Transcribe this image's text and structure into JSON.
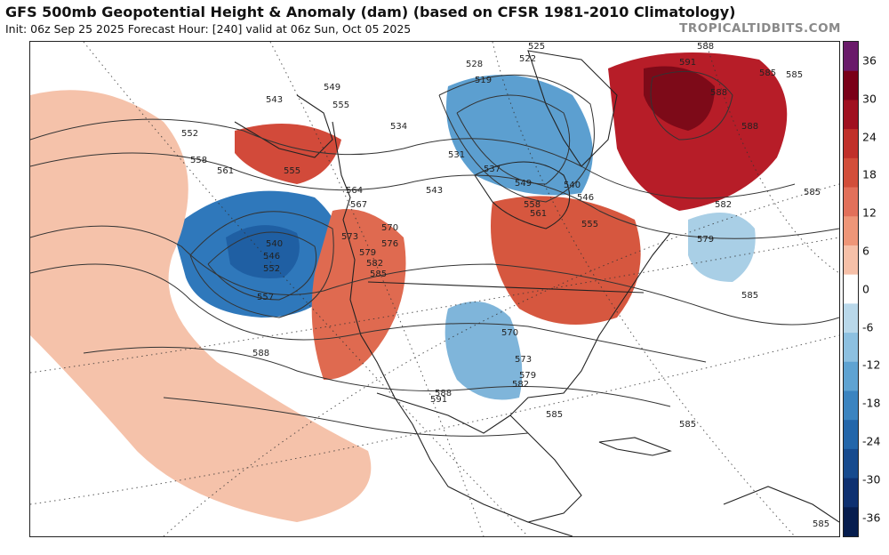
{
  "header": {
    "title": "GFS 500mb Geopotential Height & Anomaly (dam) (based on CFSR 1981-2010 Climatology)",
    "subtitle": "Init: 06z Sep 25 2025   Forecast Hour: [240]   valid at 06z Sun, Oct 05 2025",
    "site": "TROPICALTIDBITS.COM"
  },
  "colorbar": {
    "ticks": [
      "36",
      "30",
      "24",
      "18",
      "12",
      "6",
      "0",
      "-6",
      "-12",
      "-18",
      "-24",
      "-30",
      "-36"
    ],
    "colors": [
      "#6a1b6a",
      "#7a0018",
      "#a01020",
      "#c0302a",
      "#d24e3a",
      "#e2705a",
      "#ee9678",
      "#f6c0a8",
      "#ffffff",
      "#b9d8ea",
      "#8dc0e0",
      "#5fa3d2",
      "#3b84c0",
      "#2366aa",
      "#164a8e",
      "#0d3070",
      "#061d4e"
    ]
  },
  "anomalies": [
    {
      "name": "pacific-trough",
      "color": "#2f78bb"
    },
    {
      "name": "pacific-trough-core",
      "color": "#1f5fa3"
    },
    {
      "name": "atlantic-ridge",
      "color": "#b71d28"
    },
    {
      "name": "atlantic-ridge-core",
      "color": "#7d0a18"
    },
    {
      "name": "hudson-trough",
      "color": "#5c9fd0"
    },
    {
      "name": "great-lakes-ridge",
      "color": "#d6573f"
    },
    {
      "name": "plains-trough",
      "color": "#7fb5da"
    },
    {
      "name": "western-ridge",
      "color": "#df6a50"
    },
    {
      "name": "alaska-ridge",
      "color": "#d24a3a"
    },
    {
      "name": "pacific-broad-positive",
      "color": "#f5c2aa"
    },
    {
      "name": "north-atlantic-trough",
      "color": "#a9cfe6"
    }
  ],
  "contour_labels": [
    "588",
    "591",
    "585",
    "525",
    "522",
    "519",
    "528",
    "549",
    "543",
    "555",
    "552",
    "558",
    "561",
    "555",
    "534",
    "531",
    "537",
    "543",
    "540",
    "546",
    "549",
    "558",
    "561",
    "564",
    "567",
    "555",
    "573",
    "570",
    "576",
    "579",
    "582",
    "585",
    "540",
    "546",
    "552",
    "557",
    "573",
    "570",
    "579",
    "582",
    "585",
    "588",
    "591",
    "588",
    "585",
    "585",
    "579",
    "582",
    "585",
    "588",
    "585",
    "588",
    "585"
  ]
}
